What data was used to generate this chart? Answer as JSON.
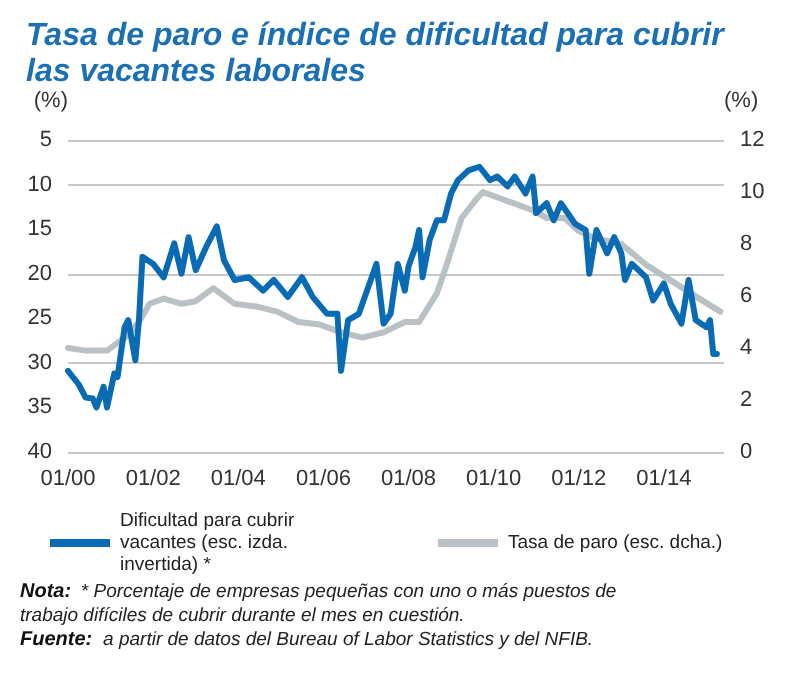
{
  "chart_data": {
    "type": "line",
    "title": "Tasa de paro e índice de dificultad para cubrir las vacantes laborales",
    "ylabel": "(%)",
    "y2label": "(%)",
    "xlim": [
      "2000-01",
      "2015-06"
    ],
    "xticks": [
      {
        "value": "2000-01",
        "label": "01/00"
      },
      {
        "value": "2002-01",
        "label": "01/02"
      },
      {
        "value": "2004-01",
        "label": "01/04"
      },
      {
        "value": "2006-01",
        "label": "01/06"
      },
      {
        "value": "2008-01",
        "label": "01/08"
      },
      {
        "value": "2010-01",
        "label": "01/10"
      },
      {
        "value": "2012-01",
        "label": "01/12"
      },
      {
        "value": "2014-01",
        "label": "01/14"
      }
    ],
    "ylim": [
      40,
      5
    ],
    "yticks": [
      5,
      10,
      15,
      20,
      25,
      30,
      35,
      40
    ],
    "y2lim": [
      0,
      12
    ],
    "y2ticks": [
      0,
      2,
      4,
      6,
      8,
      10,
      12
    ],
    "grid": "y",
    "legend": "bottom",
    "marker": "none",
    "line_style": "solid",
    "series": [
      {
        "name": "Dificultad para cubrir vacantes (esc. izda. invertida) *",
        "color": "#0a6bb5",
        "x": [
          "2000-01",
          "2000-04",
          "2000-06",
          "2000-08",
          "2000-09",
          "2000-11",
          "2000-12",
          "2001-02",
          "2001-03",
          "2001-05",
          "2001-06",
          "2001-08",
          "2001-09",
          "2001-10",
          "2002-01",
          "2002-04",
          "2002-07",
          "2002-09",
          "2002-11",
          "2003-01",
          "2003-04",
          "2003-07",
          "2003-09",
          "2003-12",
          "2004-04",
          "2004-08",
          "2004-11",
          "2005-03",
          "2005-07",
          "2005-10",
          "2006-02",
          "2006-05",
          "2006-06",
          "2006-08",
          "2006-11",
          "2007-04",
          "2007-06",
          "2007-08",
          "2007-10",
          "2007-12",
          "2008-01",
          "2008-03",
          "2008-04",
          "2008-05",
          "2008-07",
          "2008-09",
          "2008-11",
          "2009-01",
          "2009-03",
          "2009-06",
          "2009-09",
          "2009-12",
          "2010-02",
          "2010-05",
          "2010-07",
          "2010-10",
          "2010-12",
          "2011-01",
          "2011-04",
          "2011-06",
          "2011-08",
          "2011-12",
          "2012-03",
          "2012-04",
          "2012-06",
          "2012-09",
          "2012-11",
          "2013-01",
          "2013-02",
          "2013-04",
          "2013-08",
          "2013-10",
          "2014-01",
          "2014-03",
          "2014-06",
          "2014-08",
          "2014-10",
          "2015-01",
          "2015-02",
          "2015-03",
          "2015-04"
        ],
        "values": [
          30.9,
          32.4,
          33.9,
          34,
          35,
          32.7,
          35,
          31.2,
          31.6,
          26,
          25.2,
          29.7,
          25.2,
          18.1,
          18.9,
          20.4,
          16.6,
          20,
          15.9,
          19.6,
          17,
          14.7,
          18.5,
          20.7,
          20.4,
          21.9,
          20.7,
          22.6,
          20.4,
          22.6,
          24.5,
          24.5,
          30.9,
          25.2,
          24.5,
          18.9,
          25.6,
          24.5,
          18.9,
          21.9,
          19.2,
          17,
          15.1,
          20.4,
          16.2,
          14,
          14,
          11,
          9.5,
          8.4,
          8,
          9.5,
          9.1,
          10.2,
          9.1,
          11,
          9.1,
          13.2,
          12.1,
          14,
          12.1,
          14.4,
          15.1,
          20,
          15.1,
          17.7,
          15.9,
          17.7,
          20.7,
          18.9,
          20.4,
          23,
          21.1,
          23.4,
          25.6,
          20.7,
          25.2,
          26,
          25.2,
          29,
          29
        ]
      },
      {
        "name": "Tasa de paro (esc. dcha.)",
        "color": "#b9c1c5",
        "axis": "y2",
        "x": [
          "2000-01",
          "2000-06",
          "2000-12",
          "2001-03",
          "2001-06",
          "2001-09",
          "2001-12",
          "2002-04",
          "2002-09",
          "2003-01",
          "2003-06",
          "2003-12",
          "2004-06",
          "2004-12",
          "2005-06",
          "2005-12",
          "2006-06",
          "2006-12",
          "2007-06",
          "2007-12",
          "2008-04",
          "2008-09",
          "2008-12",
          "2009-04",
          "2009-08",
          "2009-10",
          "2010-06",
          "2010-12",
          "2011-04",
          "2011-09",
          "2012-01",
          "2012-06",
          "2013-01",
          "2013-08",
          "2014-03",
          "2014-11",
          "2015-05"
        ],
        "values": [
          4.0,
          3.9,
          3.9,
          4.2,
          4.5,
          5.0,
          5.7,
          5.9,
          5.7,
          5.8,
          6.3,
          5.7,
          5.6,
          5.4,
          5.0,
          4.9,
          4.6,
          4.4,
          4.6,
          5.0,
          5.0,
          6.1,
          7.3,
          9.0,
          9.7,
          10.0,
          9.6,
          9.3,
          9.0,
          9.0,
          8.5,
          8.2,
          8.0,
          7.2,
          6.6,
          5.9,
          5.4
        ]
      }
    ],
    "annotations": [
      "Nota: * Porcentaje de empresas pequeñas con uno o más puestos de trabajo difíciles de cubrir durante el mes en cuestión.",
      "Fuente: a partir de datos del Bureau of Labor Statistics y del NFIB."
    ]
  }
}
